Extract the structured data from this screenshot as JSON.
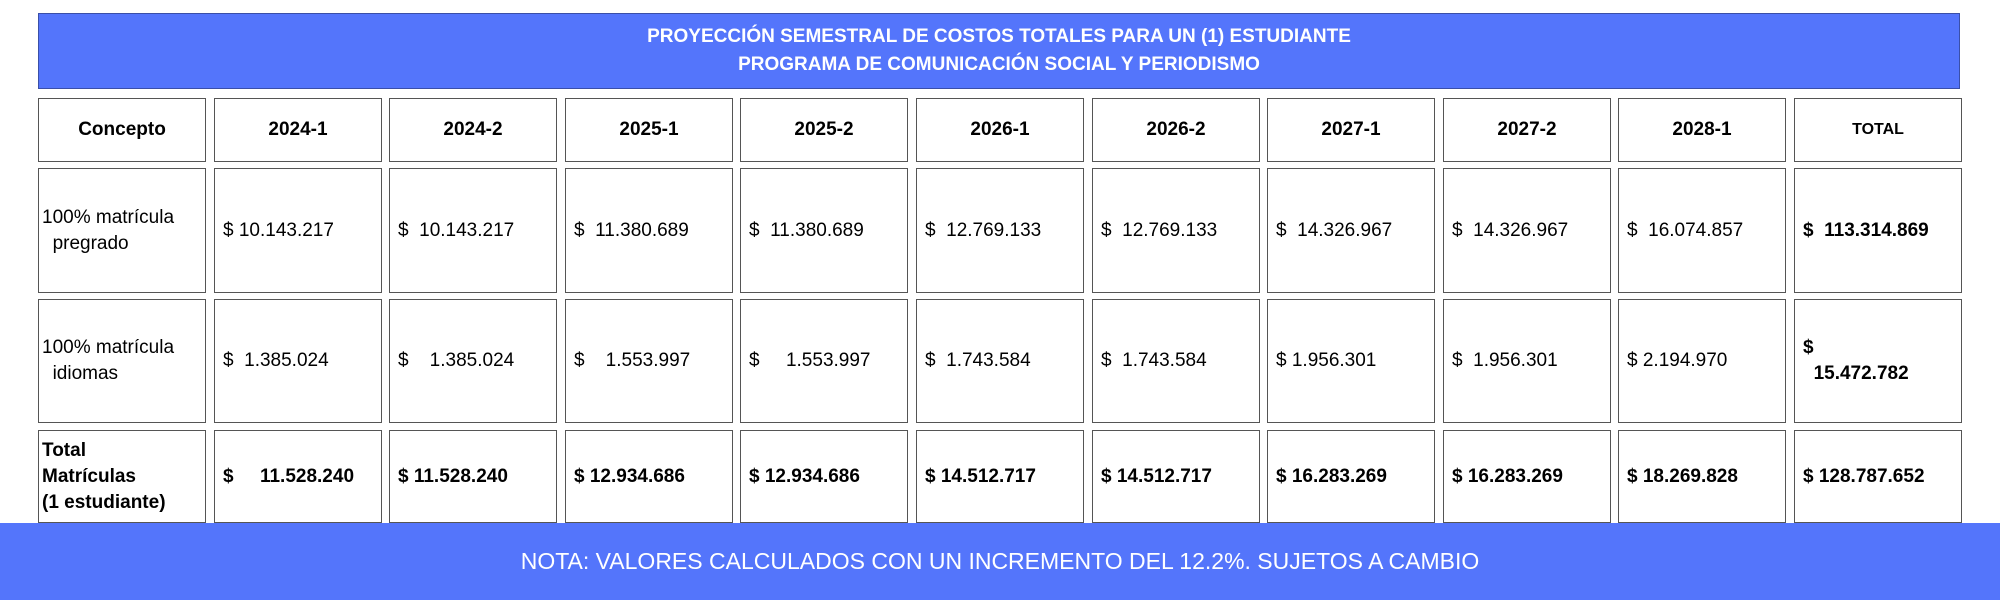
{
  "title": {
    "line1": "PROYECCIÓN SEMESTRAL DE COSTOS TOTALES PARA UN (1)  ESTUDIANTE",
    "line2": "PROGRAMA DE COMUNICACIÓN SOCIAL Y PERIODISMO"
  },
  "table": {
    "headers": [
      "Concepto",
      "2024-1",
      "2024-2",
      "2025-1",
      "2025-2",
      "2026-1",
      "2026-2",
      "2027-1",
      "2027-2",
      "2028-1",
      "TOTAL"
    ],
    "rows": [
      {
        "label": "100% matrícula\n  pregrado",
        "cells": [
          "$ 10.143.217",
          "$  10.143.217",
          "$  11.380.689",
          "$  11.380.689",
          "$  12.769.133",
          "$  12.769.133",
          "$  14.326.967",
          "$  14.326.967",
          "$  16.074.857",
          "$  113.314.869"
        ]
      },
      {
        "label": "100% matrícula\n  idiomas",
        "cells": [
          "$  1.385.024",
          "$    1.385.024",
          "$    1.553.997",
          "$     1.553.997",
          "$  1.743.584",
          "$  1.743.584",
          "$ 1.956.301",
          "$  1.956.301",
          "$ 2.194.970",
          "$\n  15.472.782"
        ]
      },
      {
        "label": "Total\nMatrículas\n(1 estudiante)",
        "cells": [
          "$     11.528.240",
          "$ 11.528.240",
          "$ 12.934.686",
          "$ 12.934.686",
          "$ 14.512.717",
          "$ 14.512.717",
          "$ 16.283.269",
          "$ 16.283.269",
          "$ 18.269.828",
          "$ 128.787.652"
        ]
      }
    ]
  },
  "note": "NOTA: VALORES CALCULADOS CON UN INCREMENTO DEL 12.2%. SUJETOS A CAMBIO"
}
